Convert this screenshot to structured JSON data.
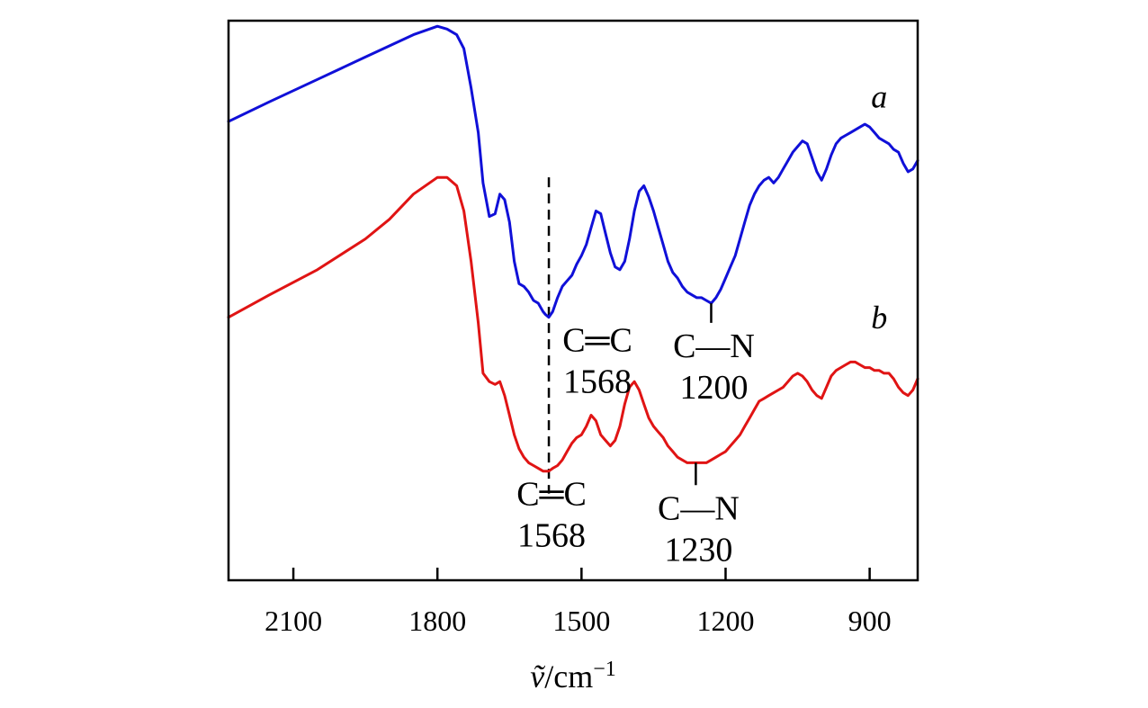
{
  "chart_data": {
    "type": "line",
    "title": "",
    "xlabel": "ṽ/cm⁻¹",
    "xlabel_parts": {
      "symbol": "ṽ",
      "unit": "/cm",
      "exponent": "−1"
    },
    "ylabel": "",
    "x_reversed": true,
    "xlim": [
      2235,
      800
    ],
    "ylim": [
      0,
      100
    ],
    "y_ticks_shown": false,
    "grid": false,
    "x_ticks": [
      2100,
      1800,
      1500,
      1200,
      900
    ],
    "x_tick_labels": [
      "2100",
      "1800",
      "1500",
      "1200",
      "900"
    ],
    "colors": {
      "a": "#1010d8",
      "b": "#e01414"
    },
    "series": [
      {
        "name": "a",
        "x": [
          2235,
          2150,
          2050,
          1950,
          1900,
          1850,
          1800,
          1780,
          1760,
          1745,
          1730,
          1715,
          1705,
          1692,
          1680,
          1670,
          1660,
          1650,
          1640,
          1630,
          1620,
          1610,
          1600,
          1590,
          1580,
          1575,
          1568,
          1560,
          1550,
          1540,
          1530,
          1520,
          1510,
          1500,
          1490,
          1480,
          1470,
          1460,
          1450,
          1440,
          1430,
          1420,
          1410,
          1400,
          1390,
          1380,
          1370,
          1360,
          1350,
          1340,
          1330,
          1320,
          1310,
          1300,
          1290,
          1280,
          1270,
          1260,
          1250,
          1240,
          1230,
          1220,
          1210,
          1200,
          1190,
          1180,
          1170,
          1160,
          1150,
          1140,
          1130,
          1120,
          1110,
          1100,
          1090,
          1080,
          1070,
          1060,
          1050,
          1040,
          1030,
          1020,
          1010,
          1000,
          990,
          980,
          970,
          960,
          950,
          940,
          930,
          920,
          910,
          900,
          890,
          880,
          870,
          860,
          850,
          840,
          830,
          820,
          810,
          800
        ],
        "y": [
          82,
          85.5,
          89.5,
          93.5,
          95.5,
          97.5,
          99,
          98.5,
          97.5,
          95,
          88,
          80,
          71,
          65,
          65.5,
          69,
          68,
          64,
          57,
          53,
          52.5,
          51.5,
          50,
          49.5,
          48,
          47.5,
          47,
          48,
          50.5,
          52.5,
          53.5,
          54.5,
          56.5,
          58,
          60,
          63,
          66,
          65.5,
          62,
          58.5,
          56,
          55.5,
          57,
          61,
          66,
          69.5,
          70.5,
          68.5,
          66,
          63,
          60,
          57,
          55,
          54,
          52.5,
          51.5,
          51,
          50.5,
          50.5,
          50,
          49.5,
          50.5,
          52,
          54,
          56,
          58,
          61,
          64,
          67,
          69,
          70.5,
          71.5,
          72,
          71,
          72,
          73.5,
          75,
          76.5,
          77.5,
          78.5,
          78,
          75.5,
          73,
          71.5,
          73.5,
          76,
          78,
          79,
          79.5,
          80,
          80.5,
          81,
          81.5,
          81,
          80,
          79,
          78.5,
          78,
          77,
          76.5,
          74.5,
          73,
          73.5,
          75
        ]
      },
      {
        "name": "b",
        "x": [
          2235,
          2150,
          2050,
          1950,
          1900,
          1850,
          1800,
          1780,
          1760,
          1745,
          1730,
          1715,
          1705,
          1692,
          1680,
          1670,
          1660,
          1650,
          1640,
          1630,
          1620,
          1610,
          1600,
          1590,
          1580,
          1575,
          1568,
          1560,
          1550,
          1540,
          1530,
          1520,
          1510,
          1500,
          1490,
          1480,
          1470,
          1460,
          1450,
          1440,
          1430,
          1420,
          1410,
          1400,
          1390,
          1380,
          1370,
          1360,
          1350,
          1340,
          1330,
          1320,
          1310,
          1300,
          1290,
          1280,
          1270,
          1260,
          1250,
          1240,
          1230,
          1220,
          1210,
          1200,
          1190,
          1180,
          1170,
          1160,
          1150,
          1140,
          1130,
          1120,
          1110,
          1100,
          1090,
          1080,
          1070,
          1060,
          1050,
          1040,
          1030,
          1020,
          1010,
          1000,
          990,
          980,
          970,
          960,
          950,
          940,
          930,
          920,
          910,
          900,
          890,
          880,
          870,
          860,
          850,
          840,
          830,
          820,
          810,
          800
        ],
        "y": [
          47,
          51,
          55.5,
          61,
          64.5,
          69,
          72,
          72,
          70.5,
          66,
          57,
          46,
          37,
          35.5,
          35,
          35.5,
          33,
          29.5,
          26,
          23.5,
          22,
          21,
          20.5,
          20,
          19.5,
          19.5,
          19.5,
          20,
          20.5,
          21.5,
          23,
          24.5,
          25.5,
          26,
          27.5,
          29.5,
          28.5,
          26,
          25,
          24,
          25,
          27.5,
          31.5,
          34.5,
          35.5,
          34,
          31.5,
          29,
          27.5,
          26.5,
          25.5,
          24,
          23,
          22,
          21.5,
          21,
          21,
          21,
          21,
          21,
          21.5,
          22,
          22.5,
          23,
          24,
          25,
          26,
          27.5,
          29,
          30.5,
          32,
          32.5,
          33,
          33.5,
          34,
          34.5,
          35.5,
          36.5,
          37,
          36.5,
          35.5,
          34,
          33,
          32.5,
          34.5,
          36.5,
          37.5,
          38,
          38.5,
          39,
          39,
          38.5,
          38,
          38,
          37.5,
          37.5,
          37,
          37,
          36,
          34.5,
          33.5,
          33,
          34,
          36
        ]
      }
    ],
    "series_labels": [
      {
        "text": "a",
        "x": 880,
        "y": 84.5
      },
      {
        "text": "b",
        "x": 880,
        "y": 45
      }
    ],
    "dashed_marker": {
      "x": 1568,
      "y_range": [
        15.5,
        72
      ]
    },
    "annotations": [
      {
        "bond": "C═C",
        "wavenumber": "1568",
        "x": 1568,
        "series": "a",
        "peak_y": 47,
        "stub_to_y": 47
      },
      {
        "bond": "C—N",
        "wavenumber": "1200",
        "x": 1230,
        "series": "a",
        "peak_y": 49.5,
        "stub_to_y": 46
      },
      {
        "bond": "C═C",
        "wavenumber": "1568",
        "x": 1568,
        "series": "b",
        "peak_y": 19.5,
        "stub_to_y": 19.5
      },
      {
        "bond": "C—N",
        "wavenumber": "1230",
        "x": 1262,
        "series": "b",
        "peak_y": 21,
        "stub_to_y": 17
      }
    ]
  }
}
